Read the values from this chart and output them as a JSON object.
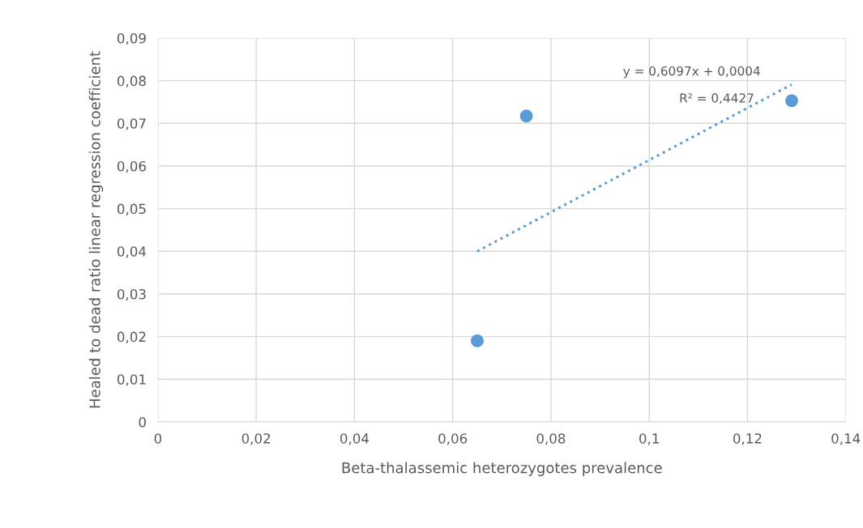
{
  "chart_data": {
    "type": "scatter",
    "xlabel": "Beta-thalassemic heterozygotes prevalence",
    "ylabel": "Healed to dead ratio linear regression coefficient",
    "series": [
      {
        "color": "#5b9bd5",
        "marker": "circle",
        "x": [
          0.065,
          0.075,
          0.129
        ],
        "values": [
          0.019,
          0.0717,
          0.0753
        ]
      },
      {
        "type": "line",
        "color": "#5b9bd5",
        "line_style": "dotted",
        "marker": "none",
        "x": [
          0.065,
          0.129
        ],
        "values": [
          0.04,
          0.0791
        ]
      }
    ],
    "annotations": [
      "y = 0,6097x + 0,0004",
      "R² = 0,4427"
    ],
    "xlim": [
      0,
      0.14
    ],
    "xticks": [
      0,
      {
        "value": 0.02,
        "label": "0,02"
      },
      {
        "value": 0.04,
        "label": "0,04"
      },
      {
        "value": 0.06,
        "label": "0,06"
      },
      {
        "value": 0.08,
        "label": "0,08"
      },
      {
        "value": 0.1,
        "label": "0,1"
      },
      {
        "value": 0.12,
        "label": "0,12"
      },
      {
        "value": 0.14,
        "label": "0,14"
      }
    ],
    "ylim": [
      0,
      0.09
    ],
    "yticks": [
      0,
      {
        "value": 0.01,
        "label": "0,01"
      },
      {
        "value": 0.02,
        "label": "0,02"
      },
      {
        "value": 0.03,
        "label": "0,03"
      },
      {
        "value": 0.04,
        "label": "0,04"
      },
      {
        "value": 0.05,
        "label": "0,05"
      },
      {
        "value": 0.06,
        "label": "0,06"
      },
      {
        "value": 0.07,
        "label": "0,07"
      },
      {
        "value": 0.08,
        "label": "0,08"
      },
      {
        "value": 0.09,
        "label": "0,09"
      }
    ],
    "grid": true
  }
}
